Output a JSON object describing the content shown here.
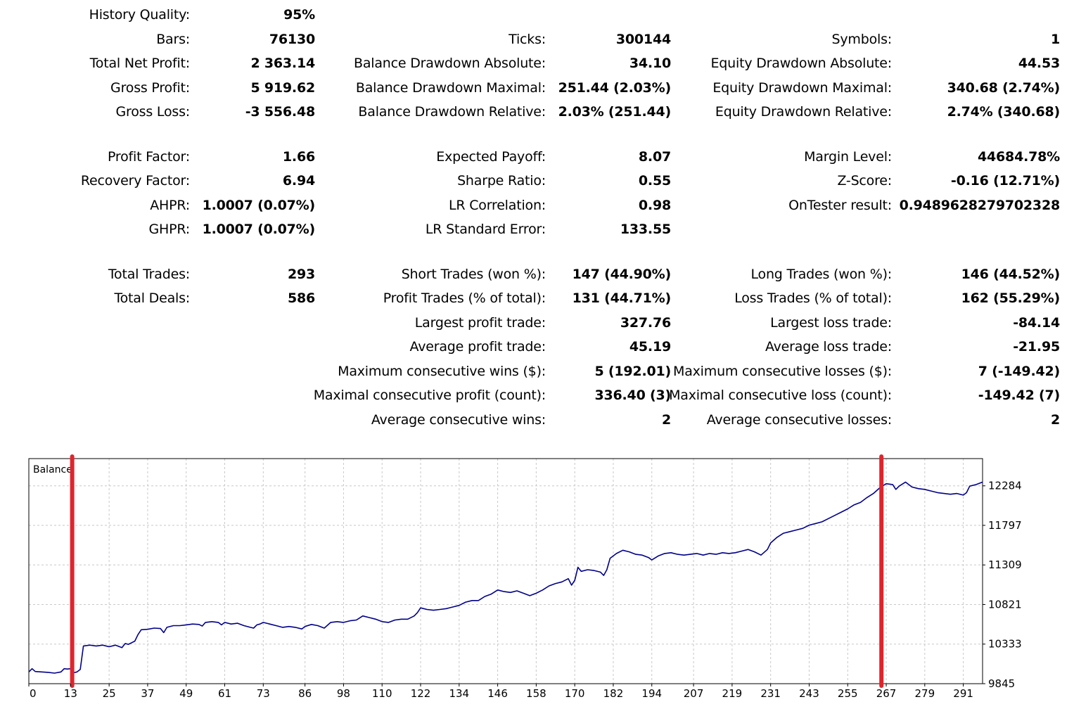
{
  "stats": {
    "col1": [
      {
        "label": "History Quality:",
        "value": "95%"
      },
      {
        "label": "Bars:",
        "value": "76130"
      },
      {
        "label": "Total Net Profit:",
        "value": "2 363.14"
      },
      {
        "label": "Gross Profit:",
        "value": "5 919.62"
      },
      {
        "label": "Gross Loss:",
        "value": "-3 556.48"
      },
      {
        "label": "Profit Factor:",
        "value": "1.66"
      },
      {
        "label": "Recovery Factor:",
        "value": "6.94"
      },
      {
        "label": "AHPR:",
        "value": "1.0007 (0.07%)"
      },
      {
        "label": "GHPR:",
        "value": "1.0007 (0.07%)"
      },
      {
        "label": "Total Trades:",
        "value": "293"
      },
      {
        "label": "Total Deals:",
        "value": "586"
      }
    ],
    "col2": [
      {
        "label": "Ticks:",
        "value": "300144"
      },
      {
        "label": "Balance Drawdown Absolute:",
        "value": "34.10"
      },
      {
        "label": "Balance Drawdown Maximal:",
        "value": "251.44 (2.03%)"
      },
      {
        "label": "Balance Drawdown Relative:",
        "value": "2.03% (251.44)"
      },
      {
        "label": "Expected Payoff:",
        "value": "8.07"
      },
      {
        "label": "Sharpe Ratio:",
        "value": "0.55"
      },
      {
        "label": "LR Correlation:",
        "value": "0.98"
      },
      {
        "label": "LR Standard Error:",
        "value": "133.55"
      },
      {
        "label": "Short Trades (won %):",
        "value": "147 (44.90%)"
      },
      {
        "label": "Profit Trades (% of total):",
        "value": "131 (44.71%)"
      },
      {
        "label": "Largest profit trade:",
        "value": "327.76"
      },
      {
        "label": "Average profit trade:",
        "value": "45.19"
      },
      {
        "label": "Maximum consecutive wins ($):",
        "value": "5 (192.01)"
      },
      {
        "label": "Maximal consecutive profit (count):",
        "value": "336.40 (3)"
      },
      {
        "label": "Average consecutive wins:",
        "value": "2"
      }
    ],
    "col3": [
      {
        "label": "Symbols:",
        "value": "1"
      },
      {
        "label": "Equity Drawdown Absolute:",
        "value": "44.53"
      },
      {
        "label": "Equity Drawdown Maximal:",
        "value": "340.68 (2.74%)"
      },
      {
        "label": "Equity Drawdown Relative:",
        "value": "2.74% (340.68)"
      },
      {
        "label": "Margin Level:",
        "value": "44684.78%"
      },
      {
        "label": "Z-Score:",
        "value": "-0.16 (12.71%)"
      },
      {
        "label": "OnTester result:",
        "value": "0.9489628279702328"
      },
      {
        "label": "Long Trades (won %):",
        "value": "146 (44.52%)"
      },
      {
        "label": "Loss Trades (% of total):",
        "value": "162 (55.29%)"
      },
      {
        "label": "Largest loss trade:",
        "value": "-84.14"
      },
      {
        "label": "Average loss trade:",
        "value": "-21.95"
      },
      {
        "label": "Maximum consecutive losses ($):",
        "value": "7 (-149.42)"
      },
      {
        "label": "Maximal consecutive loss (count):",
        "value": "-149.42 (7)"
      },
      {
        "label": "Average consecutive losses:",
        "value": "2"
      }
    ]
  },
  "chart_data": {
    "type": "line",
    "title": "Balance",
    "line_color": "#00008b",
    "marker_color": "#e0242c",
    "x_ticks": [
      "0",
      "13",
      "25",
      "37",
      "49",
      "61",
      "73",
      "86",
      "98",
      "110",
      "122",
      "134",
      "146",
      "158",
      "170",
      "182",
      "194",
      "207",
      "219",
      "231",
      "243",
      "255",
      "267",
      "279",
      "291"
    ],
    "y_ticks": [
      "12284",
      "11797",
      "11309",
      "10821",
      "10333",
      "9845"
    ],
    "xlim": [
      0,
      297
    ],
    "ylim": [
      9845,
      12620
    ],
    "markers_x": [
      13.5,
      265.5
    ],
    "grid": true,
    "series": [
      {
        "values": [
          [
            0,
            9990
          ],
          [
            1,
            10030
          ],
          [
            2,
            9995
          ],
          [
            4,
            9990
          ],
          [
            6,
            9985
          ],
          [
            8,
            9975
          ],
          [
            10,
            9990
          ],
          [
            11,
            10030
          ],
          [
            12,
            10025
          ],
          [
            13,
            10030
          ],
          [
            14,
            9980
          ],
          [
            15,
            9990
          ],
          [
            16,
            10020
          ],
          [
            17,
            10310
          ],
          [
            19,
            10320
          ],
          [
            21,
            10310
          ],
          [
            23,
            10320
          ],
          [
            25,
            10300
          ],
          [
            27,
            10320
          ],
          [
            29,
            10290
          ],
          [
            30,
            10340
          ],
          [
            31,
            10330
          ],
          [
            32,
            10350
          ],
          [
            33,
            10370
          ],
          [
            34,
            10450
          ],
          [
            35,
            10510
          ],
          [
            37,
            10515
          ],
          [
            39,
            10530
          ],
          [
            41,
            10525
          ],
          [
            42,
            10475
          ],
          [
            43,
            10540
          ],
          [
            45,
            10560
          ],
          [
            47,
            10560
          ],
          [
            49,
            10570
          ],
          [
            51,
            10580
          ],
          [
            53,
            10575
          ],
          [
            54,
            10555
          ],
          [
            55,
            10600
          ],
          [
            57,
            10610
          ],
          [
            59,
            10600
          ],
          [
            60,
            10570
          ],
          [
            61,
            10600
          ],
          [
            63,
            10580
          ],
          [
            65,
            10590
          ],
          [
            67,
            10560
          ],
          [
            69,
            10540
          ],
          [
            70,
            10530
          ],
          [
            71,
            10570
          ],
          [
            72,
            10580
          ],
          [
            73,
            10600
          ],
          [
            75,
            10580
          ],
          [
            77,
            10560
          ],
          [
            79,
            10540
          ],
          [
            81,
            10550
          ],
          [
            83,
            10540
          ],
          [
            85,
            10520
          ],
          [
            86,
            10550
          ],
          [
            88,
            10575
          ],
          [
            90,
            10560
          ],
          [
            92,
            10530
          ],
          [
            94,
            10600
          ],
          [
            96,
            10610
          ],
          [
            98,
            10600
          ],
          [
            100,
            10620
          ],
          [
            102,
            10630
          ],
          [
            104,
            10680
          ],
          [
            106,
            10660
          ],
          [
            108,
            10640
          ],
          [
            110,
            10610
          ],
          [
            112,
            10600
          ],
          [
            114,
            10630
          ],
          [
            116,
            10640
          ],
          [
            118,
            10640
          ],
          [
            120,
            10680
          ],
          [
            121,
            10720
          ],
          [
            122,
            10780
          ],
          [
            124,
            10760
          ],
          [
            126,
            10750
          ],
          [
            128,
            10760
          ],
          [
            130,
            10770
          ],
          [
            132,
            10790
          ],
          [
            134,
            10810
          ],
          [
            136,
            10850
          ],
          [
            138,
            10870
          ],
          [
            140,
            10870
          ],
          [
            142,
            10920
          ],
          [
            144,
            10950
          ],
          [
            146,
            11000
          ],
          [
            148,
            10980
          ],
          [
            150,
            10970
          ],
          [
            152,
            10990
          ],
          [
            154,
            10960
          ],
          [
            156,
            10930
          ],
          [
            158,
            10960
          ],
          [
            160,
            11000
          ],
          [
            162,
            11050
          ],
          [
            164,
            11080
          ],
          [
            166,
            11100
          ],
          [
            168,
            11140
          ],
          [
            169,
            11060
          ],
          [
            170,
            11120
          ],
          [
            171,
            11280
          ],
          [
            172,
            11230
          ],
          [
            174,
            11250
          ],
          [
            176,
            11240
          ],
          [
            178,
            11220
          ],
          [
            179,
            11180
          ],
          [
            180,
            11250
          ],
          [
            181,
            11390
          ],
          [
            183,
            11450
          ],
          [
            185,
            11490
          ],
          [
            187,
            11470
          ],
          [
            189,
            11440
          ],
          [
            191,
            11430
          ],
          [
            193,
            11400
          ],
          [
            194,
            11370
          ],
          [
            196,
            11420
          ],
          [
            198,
            11450
          ],
          [
            200,
            11460
          ],
          [
            202,
            11440
          ],
          [
            204,
            11430
          ],
          [
            206,
            11440
          ],
          [
            208,
            11450
          ],
          [
            210,
            11430
          ],
          [
            212,
            11450
          ],
          [
            214,
            11440
          ],
          [
            216,
            11460
          ],
          [
            218,
            11450
          ],
          [
            220,
            11460
          ],
          [
            222,
            11480
          ],
          [
            224,
            11500
          ],
          [
            226,
            11470
          ],
          [
            228,
            11430
          ],
          [
            230,
            11500
          ],
          [
            231,
            11580
          ],
          [
            233,
            11650
          ],
          [
            235,
            11700
          ],
          [
            237,
            11720
          ],
          [
            239,
            11740
          ],
          [
            241,
            11760
          ],
          [
            243,
            11800
          ],
          [
            245,
            11820
          ],
          [
            247,
            11840
          ],
          [
            249,
            11880
          ],
          [
            251,
            11920
          ],
          [
            253,
            11960
          ],
          [
            255,
            12000
          ],
          [
            257,
            12050
          ],
          [
            259,
            12080
          ],
          [
            261,
            12140
          ],
          [
            263,
            12190
          ],
          [
            265,
            12260
          ],
          [
            267,
            12310
          ],
          [
            269,
            12300
          ],
          [
            270,
            12240
          ],
          [
            271,
            12280
          ],
          [
            273,
            12330
          ],
          [
            275,
            12270
          ],
          [
            277,
            12250
          ],
          [
            279,
            12240
          ],
          [
            281,
            12220
          ],
          [
            283,
            12200
          ],
          [
            285,
            12190
          ],
          [
            287,
            12180
          ],
          [
            289,
            12190
          ],
          [
            291,
            12170
          ],
          [
            292,
            12200
          ],
          [
            293,
            12280
          ],
          [
            295,
            12300
          ],
          [
            297,
            12330
          ]
        ]
      }
    ]
  }
}
